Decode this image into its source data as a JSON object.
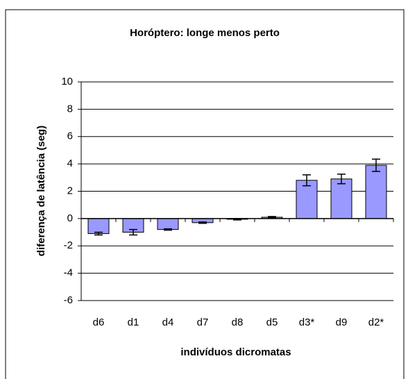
{
  "chart_data": {
    "type": "bar",
    "title": "Horóptero: longe menos perto",
    "x_label": "indivíduos dicromatas",
    "y_label": "diferença de latência (seg)",
    "categories": [
      "d6",
      "d1",
      "d4",
      "d7",
      "d8",
      "d5",
      "d3*",
      "d9",
      "d2*"
    ],
    "values": [
      -1.1,
      -1.0,
      -0.8,
      -0.3,
      -0.05,
      0.1,
      2.8,
      2.9,
      3.9
    ],
    "errors": [
      0.1,
      0.2,
      0.05,
      0.05,
      0.05,
      0.05,
      0.4,
      0.35,
      0.45
    ],
    "color": "#9999ff",
    "ylim": [
      -6,
      10
    ],
    "yticks": [
      -6,
      -4,
      -2,
      0,
      2,
      4,
      6,
      8,
      10
    ],
    "grid": true
  }
}
